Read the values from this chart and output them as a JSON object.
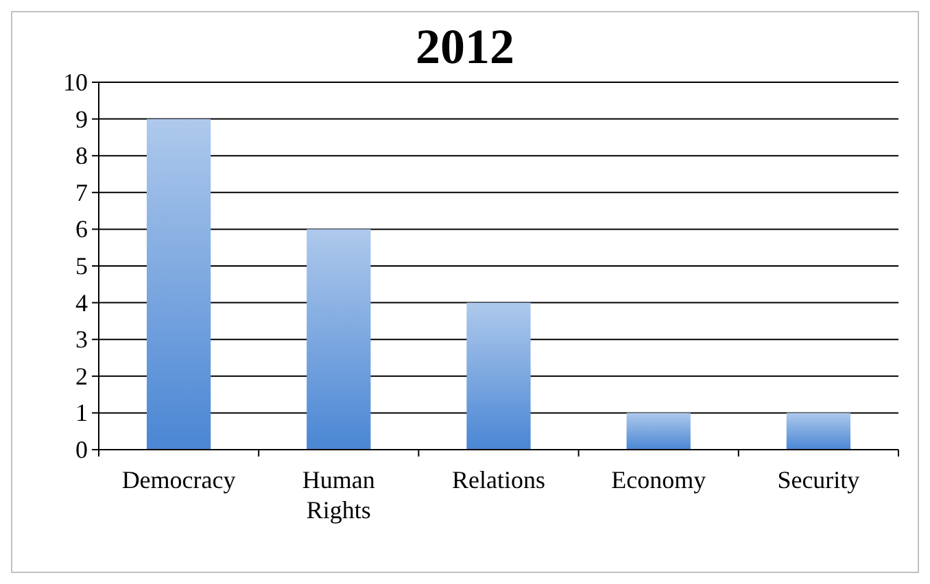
{
  "chart_data": {
    "type": "bar",
    "title": "2012",
    "categories": [
      "Democracy",
      "Human Rights",
      "Relations",
      "Economy",
      "Security"
    ],
    "values": [
      9,
      6,
      4,
      1,
      1
    ],
    "color": "#4a86d4",
    "ylim": [
      0,
      10
    ],
    "yticks": [
      0,
      1,
      2,
      3,
      4,
      5,
      6,
      7,
      8,
      9,
      10
    ],
    "grid": "y"
  }
}
